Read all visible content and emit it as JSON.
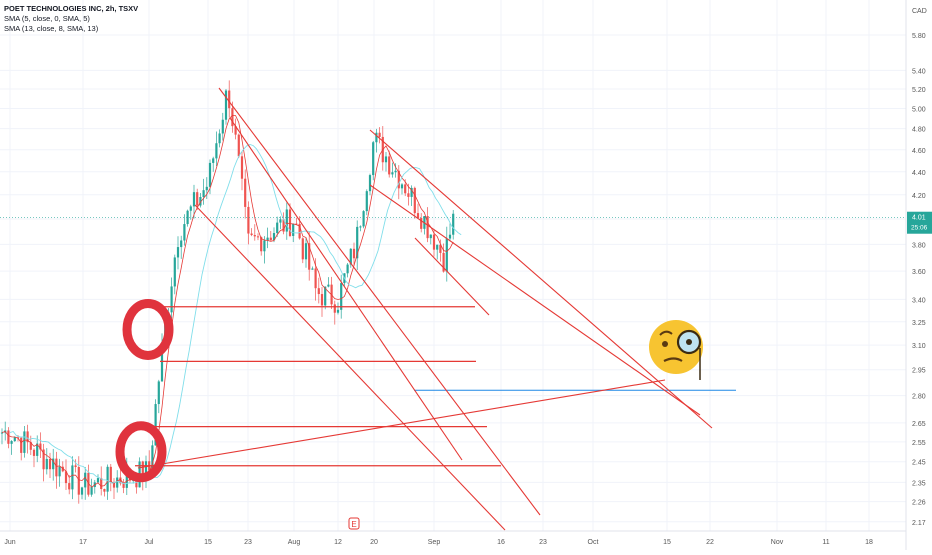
{
  "header": {
    "title": "POET TECHNOLOGIES INC, 2h, TSXV",
    "indicators": [
      "SMA (5, close, 0, SMA, 5)",
      "SMA (13, close, 8, SMA, 13)"
    ],
    "currency": "CAD"
  },
  "price_badge": {
    "price": "4.01",
    "countdown": "25:06",
    "color": "#26a69a"
  },
  "colors": {
    "up": "#26a69a",
    "down": "#ef5350",
    "sma5": "#e53935",
    "sma13": "#80deea",
    "drawing": "#e53935",
    "hline": "#1e88e5"
  },
  "chart_data": {
    "type": "candlestick",
    "title": "POET TECHNOLOGIES INC, 2h, TSXV",
    "timeframe": "2h",
    "y_scale": "log",
    "ylim": [
      2.13,
      6.1
    ],
    "y_ticks": [
      "5.80",
      "5.40",
      "5.20",
      "5.00",
      "4.80",
      "4.60",
      "4.40",
      "4.20",
      "4.00",
      "3.80",
      "3.60",
      "3.40",
      "3.25",
      "3.10",
      "2.95",
      "2.80",
      "2.65",
      "2.55",
      "2.45",
      "2.35",
      "2.26",
      "2.17"
    ],
    "x_ticks": [
      "Jun",
      "17",
      "Jul",
      "15",
      "23",
      "Aug",
      "12",
      "20",
      "Sep",
      "16",
      "23",
      "Oct",
      "15",
      "22",
      "Nov",
      "11",
      "18"
    ],
    "earnings_marker": "E",
    "price_path": [
      [
        "Jun",
        2.6
      ],
      [
        "17",
        2.33
      ],
      [
        "Jul",
        2.4
      ],
      [
        "Jul",
        3.9
      ],
      [
        "15",
        4.3
      ],
      [
        "15",
        5.2
      ],
      [
        "23",
        3.8
      ],
      [
        "Aug",
        4.0
      ],
      [
        "Aug",
        3.45
      ],
      [
        "12",
        3.4
      ],
      [
        "12",
        3.8
      ],
      [
        "20",
        4.7
      ],
      [
        "20",
        4.3
      ],
      [
        "Sep",
        3.85
      ],
      [
        "Sep",
        3.7
      ],
      [
        "Sep",
        4.01
      ]
    ],
    "annotations": {
      "circles": [
        3.2,
        2.5
      ],
      "horizontal_levels": [
        3.35,
        3.0,
        2.63,
        2.43
      ],
      "blue_level": 2.83,
      "emoji": "face-with-monocle"
    }
  }
}
